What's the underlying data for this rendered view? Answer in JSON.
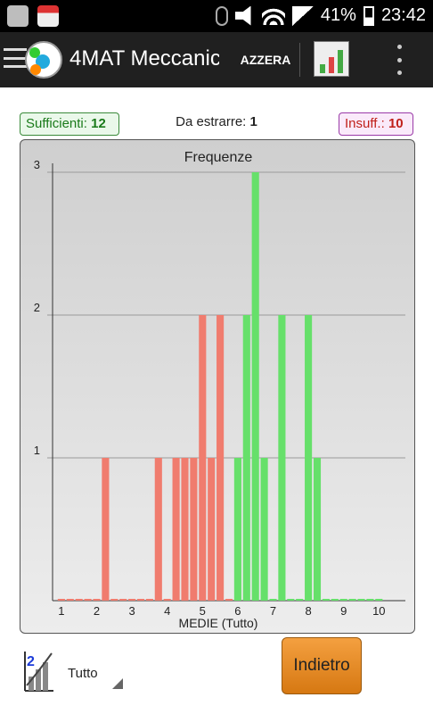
{
  "status_bar": {
    "battery": "41%",
    "time": "23:42"
  },
  "app_bar": {
    "title": "4MAT Meccanic",
    "reset_label": "AZZERA"
  },
  "summary": {
    "sufficient_label": "Sufficienti:",
    "sufficient_value": "12",
    "to_extract_label": "Da estrarre:",
    "to_extract_value": "1",
    "insufficient_label": "Insuff.:",
    "insufficient_value": "10"
  },
  "chart_data": {
    "type": "bar",
    "title": "Frequenze",
    "xlabel": "MEDIE (Tutto)",
    "ylabel": "",
    "xlim": [
      0.75,
      10.75
    ],
    "ylim": [
      0,
      3
    ],
    "x_ticks": [
      "1",
      "2",
      "3",
      "4",
      "5",
      "6",
      "7",
      "8",
      "9",
      "10"
    ],
    "y_ticks": [
      "1",
      "2",
      "3"
    ],
    "grid": true,
    "threshold": 6,
    "colors": {
      "insufficient": "#f07c6e",
      "sufficient": "#66e06a"
    },
    "x": [
      1,
      1.25,
      1.5,
      1.75,
      2,
      2.25,
      2.5,
      2.75,
      3,
      3.25,
      3.5,
      3.75,
      4,
      4.25,
      4.5,
      4.75,
      5,
      5.25,
      5.5,
      5.75,
      6,
      6.25,
      6.5,
      6.75,
      7,
      7.25,
      7.5,
      7.75,
      8,
      8.25,
      8.5,
      8.75,
      9,
      9.25,
      9.5,
      9.75,
      10
    ],
    "values": [
      0,
      0,
      0,
      0,
      0,
      1,
      0,
      0,
      0,
      0,
      0,
      1,
      0,
      1,
      1,
      1,
      2,
      1,
      2,
      0,
      1,
      2,
      3,
      1,
      0,
      2,
      0,
      0,
      2,
      1,
      0,
      0,
      0,
      0,
      0,
      0,
      0
    ]
  },
  "bottom": {
    "filter_value": "Tutto",
    "back_label": "Indietro"
  }
}
